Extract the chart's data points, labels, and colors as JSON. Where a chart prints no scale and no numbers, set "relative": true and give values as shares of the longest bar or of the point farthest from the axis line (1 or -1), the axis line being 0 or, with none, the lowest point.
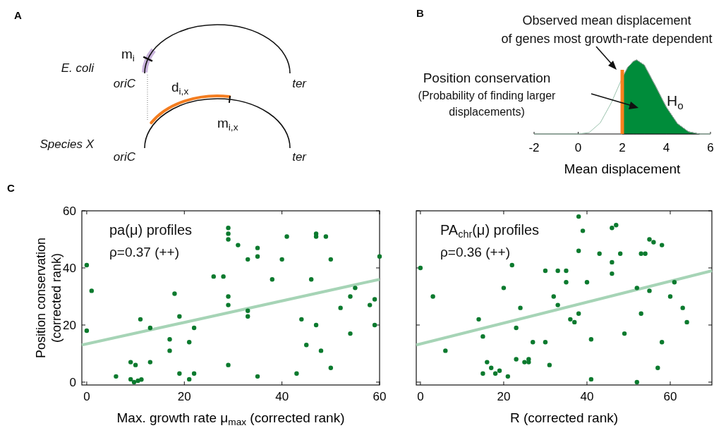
{
  "chart_data": [
    {
      "type": "other",
      "title": "A",
      "annotations": [
        "E. coli",
        "oriC",
        "ter",
        "m$_{i}$",
        "d$_{i,x}$",
        "m$_{i,x}$",
        "Species X",
        "oriC",
        "ter"
      ]
    },
    {
      "type": "area",
      "relative": true,
      "xlabel": "Mean displacement",
      "xlim": [
        -2,
        6
      ],
      "xticks": [
        -2,
        0,
        2,
        4,
        6
      ],
      "series": [
        {
          "type": "line",
          "color": "#9cc3ae",
          "x": [
            -2,
            0,
            0.5,
            1,
            1.5,
            2,
            2.25,
            2.5,
            2.65,
            3,
            3.5,
            4,
            4.5,
            5,
            5.5,
            6
          ],
          "values": [
            0,
            0,
            0.02,
            0.15,
            0.42,
            0.76,
            0.9,
            0.98,
            1,
            0.93,
            0.65,
            0.36,
            0.14,
            0.03,
            0,
            0
          ]
        },
        {
          "type": "area",
          "color": "#008c3a",
          "x": [
            2,
            2.25,
            2.5,
            2.65,
            3,
            3.5,
            4,
            4.5,
            5,
            5.5
          ],
          "values": [
            0.76,
            0.9,
            0.98,
            1,
            0.93,
            0.65,
            0.36,
            0.14,
            0.03,
            0
          ]
        }
      ],
      "ref_lines": [
        {
          "axis": "x",
          "value": 2,
          "color": "#f7811e"
        }
      ],
      "annotations": [
        "B",
        "Observed mean displacement",
        "of genes most growth-rate dependent",
        "Position conservation",
        "(Probability of finding larger",
        "displacements)",
        "H$_{o}$"
      ]
    },
    {
      "type": "scatter",
      "title": "C",
      "xlabel": "Max. growth rate μ$_{max}$ (corrected rank)",
      "ylabel": "Position conservation\n(corrected rank)",
      "xlim": [
        -1,
        60
      ],
      "ylim": [
        -1,
        60
      ],
      "xticks": [
        0,
        20,
        40,
        60
      ],
      "yticks": [
        0,
        20,
        40,
        60
      ],
      "series": [
        {
          "type": "scatter",
          "marker": "circle",
          "color": "#0b7a2e",
          "x": [
            0,
            1,
            0,
            6,
            9,
            10,
            9,
            9.7,
            10.5,
            11.2,
            11,
            13,
            13,
            18,
            17,
            17,
            19,
            19,
            21,
            21,
            22,
            22,
            26,
            28,
            29,
            29,
            29,
            29,
            29,
            29,
            31,
            33,
            33,
            33,
            35,
            35,
            35,
            38,
            41,
            40,
            43,
            44,
            45,
            46,
            47,
            47,
            47,
            48,
            49,
            50,
            50,
            52,
            54,
            54,
            55,
            58,
            59,
            59,
            60
          ],
          "values": [
            41,
            32,
            18,
            2,
            7,
            6,
            1,
            0,
            0.5,
            0.9,
            22,
            19,
            7,
            31,
            15,
            11,
            23,
            3,
            1,
            14,
            19,
            3,
            37,
            37,
            54,
            52,
            50,
            30,
            27,
            6,
            48,
            43,
            23,
            25,
            44,
            47,
            2,
            36,
            51,
            43,
            3,
            22,
            13,
            36,
            20,
            51,
            52,
            11,
            51,
            43,
            5,
            26,
            17,
            30,
            33,
            27,
            20,
            29,
            44
          ]
        },
        {
          "type": "line",
          "color": "#a6d4b6",
          "x": [
            -1,
            60
          ],
          "values": [
            13,
            36
          ]
        }
      ],
      "annotations": [
        "pa(μ) profiles",
        "ρ=0.37 (++)"
      ]
    },
    {
      "type": "scatter",
      "xlabel": "R (corrected rank)",
      "xlim": [
        -1,
        70
      ],
      "ylim": [
        -1,
        60
      ],
      "xticks": [
        0,
        20,
        40,
        60
      ],
      "yticks": [
        0,
        20,
        40,
        60
      ],
      "tick_labels": "x",
      "series": [
        {
          "type": "scatter",
          "marker": "circle",
          "color": "#0b7a2e",
          "x": [
            0,
            3,
            6,
            14,
            15,
            15,
            16,
            17,
            18,
            19,
            21,
            20,
            22,
            23,
            24,
            23,
            25,
            26,
            26,
            27,
            30,
            31,
            30,
            32,
            33,
            33,
            35,
            35,
            38,
            38,
            39,
            36,
            37,
            38,
            40,
            41,
            41,
            43,
            46,
            47,
            46,
            46,
            48,
            49,
            52,
            52,
            53,
            54,
            53,
            55,
            55,
            56,
            57,
            58,
            58,
            61,
            60,
            63,
            64
          ],
          "values": [
            40,
            30,
            11,
            22,
            16,
            3,
            7,
            5,
            3,
            4,
            2,
            33,
            41,
            19,
            26,
            8,
            7,
            8,
            7,
            14,
            14,
            6,
            39,
            30,
            27,
            39,
            39,
            35,
            58,
            46,
            53,
            22,
            21,
            24,
            35,
            15,
            1,
            45,
            54,
            55,
            38,
            42,
            45,
            17,
            33,
            0,
            45,
            45,
            24,
            32,
            50,
            49,
            5,
            14,
            48,
            35,
            30,
            26,
            21
          ]
        },
        {
          "type": "line",
          "color": "#a6d4b6",
          "x": [
            -1,
            70
          ],
          "values": [
            13,
            39
          ]
        }
      ],
      "annotations": [
        "PA$_{chr}$(μ) profiles",
        "ρ=0.36 (++)"
      ]
    }
  ]
}
